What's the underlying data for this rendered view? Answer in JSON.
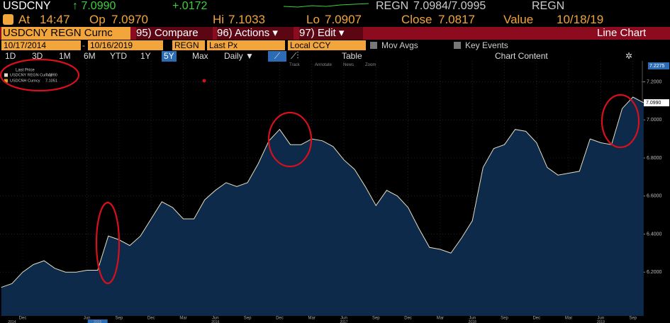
{
  "quote": {
    "ticker": "USDCNY",
    "last": "↑ 7.0990",
    "change": "+.0172",
    "source": "REGN",
    "bid_ask": "7.0984/7.0995",
    "source2": "REGN"
  },
  "stats": {
    "at_label": "At",
    "at": "14:47",
    "op_label": "Op",
    "op": "7.0970",
    "hi_label": "Hi",
    "hi": "7.1033",
    "lo_label": "Lo",
    "lo": "7.0907",
    "close_label": "Close",
    "close": "7.0817",
    "value_label": "Value",
    "value": "10/18/19"
  },
  "menu": {
    "security": "USDCNY REGN Curnc",
    "compare": "95) Compare",
    "actions": "96) Actions ▾",
    "edit": "97) Edit ▾",
    "view": "Line Chart"
  },
  "controls": {
    "start": "10/17/2014",
    "end": "10/16/2019",
    "source": "REGN",
    "field": "Last Px",
    "currency": "Local CCY",
    "mov_avgs": "Mov Avgs",
    "key_events": "Key Events"
  },
  "periods": [
    "1D",
    "3D",
    "1M",
    "6M",
    "YTD",
    "1Y",
    "5Y",
    "Max"
  ],
  "selected_period_index": 6,
  "frequency": "Daily ▼",
  "table": "Table",
  "chart_content": "Chart Content",
  "tools": [
    "Track",
    "Annotate",
    "News",
    "Zoom"
  ],
  "chart_data": {
    "type": "area",
    "legend_title": "Last Price",
    "x": [
      "2014-10",
      "2014-11",
      "2014-12",
      "2015-01",
      "2015-02",
      "2015-03",
      "2015-04",
      "2015-05",
      "2015-06",
      "2015-07",
      "2015-08",
      "2015-09",
      "2015-10",
      "2015-11",
      "2015-12",
      "2016-01",
      "2016-02",
      "2016-03",
      "2016-04",
      "2016-05",
      "2016-06",
      "2016-07",
      "2016-08",
      "2016-09",
      "2016-10",
      "2016-11",
      "2016-12",
      "2017-01",
      "2017-02",
      "2017-03",
      "2017-04",
      "2017-05",
      "2017-06",
      "2017-07",
      "2017-08",
      "2017-09",
      "2017-10",
      "2017-11",
      "2017-12",
      "2018-01",
      "2018-02",
      "2018-03",
      "2018-04",
      "2018-05",
      "2018-06",
      "2018-07",
      "2018-08",
      "2018-09",
      "2018-10",
      "2018-11",
      "2018-12",
      "2019-01",
      "2019-02",
      "2019-03",
      "2019-04",
      "2019-05",
      "2019-06",
      "2019-07",
      "2019-08",
      "2019-09",
      "2019-10"
    ],
    "series": [
      {
        "name": "USDCNY REGN Curncy",
        "last_label": "7.0990",
        "color": "#e6dfc0",
        "fill": "#0d2a4a",
        "values": [
          6.12,
          6.14,
          6.2,
          6.24,
          6.26,
          6.22,
          6.2,
          6.2,
          6.21,
          6.21,
          6.39,
          6.37,
          6.34,
          6.39,
          6.48,
          6.57,
          6.54,
          6.48,
          6.48,
          6.58,
          6.63,
          6.67,
          6.65,
          6.67,
          6.77,
          6.89,
          6.95,
          6.87,
          6.87,
          6.9,
          6.89,
          6.86,
          6.79,
          6.74,
          6.65,
          6.55,
          6.63,
          6.6,
          6.54,
          6.43,
          6.33,
          6.32,
          6.3,
          6.38,
          6.47,
          6.75,
          6.85,
          6.87,
          6.95,
          6.94,
          6.88,
          6.75,
          6.71,
          6.72,
          6.73,
          6.9,
          6.88,
          6.87,
          7.06,
          7.12,
          7.09
        ]
      }
    ],
    "other_legend": [
      {
        "name": "USDCNH Curncy",
        "last_label": "7.1051",
        "color": "#d9a520"
      }
    ],
    "top_label": "7.2275",
    "ylim": [
      5.97,
      7.31
    ],
    "yticks": [
      {
        "value": 6.2,
        "label": "6.2000"
      },
      {
        "value": 6.4,
        "label": "6.4000"
      },
      {
        "value": 6.6,
        "label": "6.6000"
      },
      {
        "value": 6.8,
        "label": "6.8000"
      },
      {
        "value": 7.0,
        "label": "7.0000"
      },
      {
        "value": 7.2,
        "label": "7.2000"
      }
    ],
    "xticks": [
      {
        "value": "2014-12",
        "label": "Dec"
      },
      {
        "value": "2015-06",
        "label": "Jun"
      },
      {
        "value": "2015-09",
        "label": "Sep"
      },
      {
        "value": "2015-12",
        "label": "Dec"
      },
      {
        "value": "2016-03",
        "label": "Mar"
      },
      {
        "value": "2016-06",
        "label": "Jun"
      },
      {
        "value": "2016-09",
        "label": "Sep"
      },
      {
        "value": "2016-12",
        "label": "Dec"
      },
      {
        "value": "2017-03",
        "label": "Mar"
      },
      {
        "value": "2017-06",
        "label": "Jun"
      },
      {
        "value": "2017-09",
        "label": "Sep"
      },
      {
        "value": "2017-12",
        "label": "Dec"
      },
      {
        "value": "2018-03",
        "label": "Mar"
      },
      {
        "value": "2018-06",
        "label": "Jun"
      },
      {
        "value": "2018-09",
        "label": "Sep"
      },
      {
        "value": "2018-12",
        "label": "Dec"
      },
      {
        "value": "2019-03",
        "label": "Mar"
      },
      {
        "value": "2019-06",
        "label": "Jun"
      },
      {
        "value": "2019-09",
        "label": "Sep"
      }
    ],
    "year_labels": [
      {
        "value": "2014-11",
        "label": "2014"
      },
      {
        "value": "2015-07",
        "label": "2015"
      },
      {
        "value": "2016-06",
        "label": "2016"
      },
      {
        "value": "2017-06",
        "label": "2017"
      },
      {
        "value": "2018-06",
        "label": "2018"
      },
      {
        "value": "2019-06",
        "label": "2019"
      }
    ],
    "grid": true
  }
}
